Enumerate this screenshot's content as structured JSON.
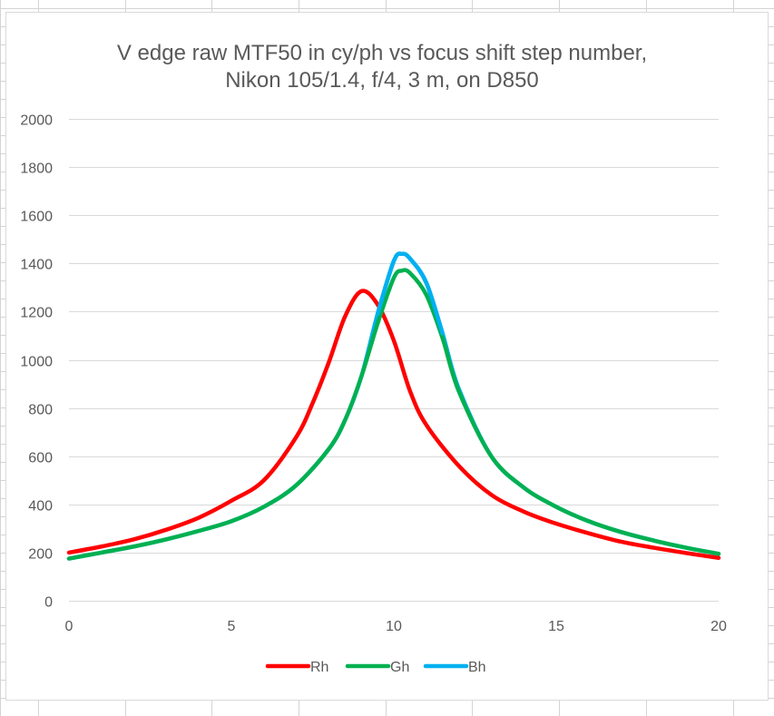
{
  "colors": {
    "Rh": "#ff0000",
    "Gh": "#00b050",
    "Bh": "#00b0f0",
    "gridline": "#d9d9d9",
    "text": "#595959"
  },
  "chart_data": {
    "type": "line",
    "title_lines": [
      "V edge raw MTF50 in cy/ph vs focus shift step number,",
      "Nikon 105/1.4, f/4, 3 m, on D850"
    ],
    "xlabel": "",
    "ylabel": "",
    "xlim": [
      0,
      20
    ],
    "ylim": [
      0,
      2000
    ],
    "x_ticks": [
      0,
      5,
      10,
      15,
      20
    ],
    "y_ticks": [
      0,
      200,
      400,
      600,
      800,
      1000,
      1200,
      1400,
      1600,
      1800,
      2000
    ],
    "grid": true,
    "legend_position": "bottom",
    "series": [
      {
        "name": "Rh",
        "x": [
          0,
          1,
          2,
          3,
          4,
          5,
          6,
          7,
          7.5,
          8,
          8.5,
          9,
          9.5,
          10,
          10.5,
          11,
          12,
          13,
          14,
          15,
          16,
          17,
          18,
          19,
          20
        ],
        "y": [
          200,
          225,
          255,
          295,
          345,
          415,
          500,
          680,
          820,
          990,
          1180,
          1285,
          1230,
          1080,
          870,
          730,
          560,
          440,
          370,
          320,
          280,
          245,
          220,
          198,
          178
        ]
      },
      {
        "name": "Gh",
        "x": [
          0,
          1,
          2,
          3,
          4,
          5,
          6,
          7,
          8,
          8.5,
          9,
          9.5,
          10,
          10.25,
          10.5,
          11,
          11.5,
          12,
          13,
          14,
          15,
          16,
          17,
          18,
          19,
          20
        ],
        "y": [
          175,
          200,
          225,
          255,
          290,
          330,
          390,
          480,
          630,
          750,
          930,
          1150,
          1340,
          1370,
          1360,
          1270,
          1090,
          870,
          600,
          470,
          390,
          330,
          285,
          250,
          220,
          195
        ]
      },
      {
        "name": "Bh",
        "x": [
          0,
          1,
          2,
          3,
          4,
          5,
          6,
          7,
          8,
          8.5,
          9,
          9.5,
          10,
          10.25,
          10.5,
          11,
          11.5,
          12,
          13,
          14,
          15,
          16,
          17,
          18,
          19,
          20
        ],
        "y": [
          175,
          200,
          225,
          255,
          290,
          330,
          390,
          480,
          630,
          750,
          930,
          1190,
          1410,
          1440,
          1420,
          1320,
          1110,
          880,
          600,
          470,
          390,
          330,
          285,
          250,
          220,
          195
        ]
      }
    ]
  }
}
